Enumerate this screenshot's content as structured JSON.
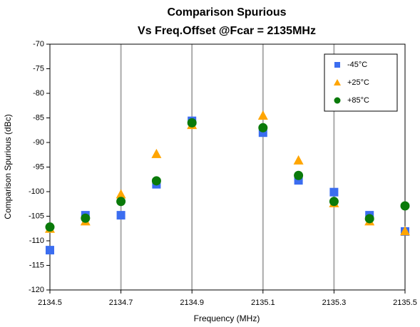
{
  "chart_data": {
    "type": "scatter",
    "title": "Comparison Spurious",
    "subtitle": "Vs Freq.Offset @Fcar = 2135MHz",
    "x_label": "Frequency (MHz)",
    "y_label": "Comparison Spurious  (dBc)",
    "x": [
      2134.5,
      2134.6,
      2134.7,
      2134.8,
      2134.9,
      2135.1,
      2135.2,
      2135.3,
      2135.4,
      2135.5
    ],
    "series": [
      {
        "name": "-45°C",
        "color": "#3b6df0",
        "marker": "square",
        "values": [
          -111.9,
          -104.8,
          -104.8,
          -98.5,
          -85.6,
          -88,
          -97.7,
          -100.1,
          -104.8,
          -108.1
        ]
      },
      {
        "name": "+25°C",
        "color": "#ffa500",
        "marker": "triangle",
        "values": [
          -107.5,
          -106,
          -100.5,
          -92.3,
          -86.4,
          -84.5,
          -93.6,
          -102.3,
          -106,
          -108
        ]
      },
      {
        "name": "+85°C",
        "color": "#0a7a0a",
        "marker": "circle",
        "values": [
          -107.2,
          -105.4,
          -102,
          -97.8,
          -86,
          -87,
          -96.7,
          -102,
          -105.5,
          -102.9
        ]
      }
    ],
    "xlim": [
      2134.5,
      2135.5
    ],
    "xticks": [
      2134.5,
      2134.7,
      2134.9,
      2135.1,
      2135.3,
      2135.5
    ],
    "ylim": [
      -120,
      -70
    ],
    "yticks": [
      -120,
      -115,
      -110,
      -105,
      -100,
      -95,
      -90,
      -85,
      -80,
      -75,
      -70
    ],
    "grid": "x",
    "legend": "upper right"
  }
}
